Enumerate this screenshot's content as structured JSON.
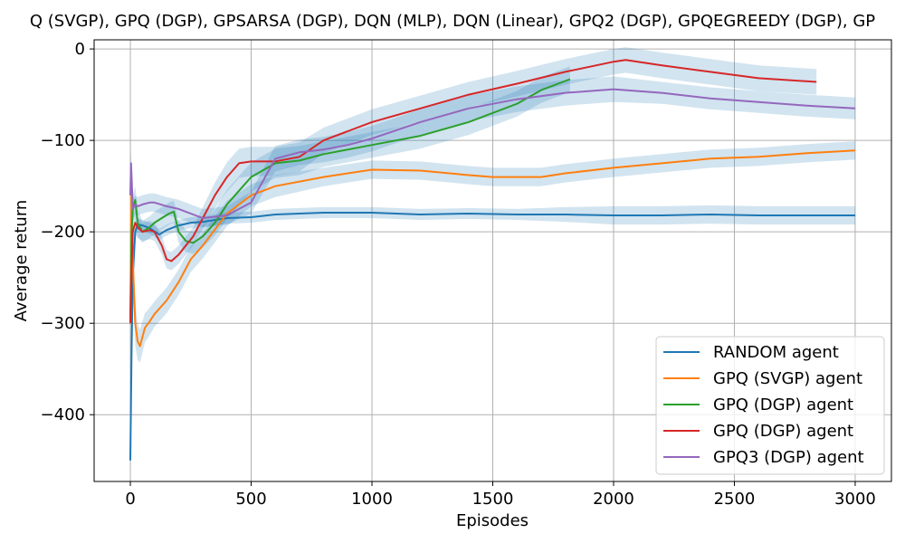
{
  "chart_data": {
    "type": "line",
    "title": "Q (SVGP), GPQ (DGP), GPSARSA (DGP), DQN (MLP), DQN (Linear), GPQ2 (DGP), GPQEGREEDY (DGP), GP",
    "xlabel": "Episodes",
    "ylabel": "Average return",
    "xlim": [
      -150,
      3150
    ],
    "ylim": [
      -473,
      10
    ],
    "xticks": [
      0,
      500,
      1000,
      1500,
      2000,
      2500,
      3000
    ],
    "xtick_labels": [
      "0",
      "500",
      "1000",
      "1500",
      "2000",
      "2500",
      "3000"
    ],
    "yticks": [
      -400,
      -300,
      -200,
      -100,
      0
    ],
    "ytick_labels": [
      "−400",
      "−300",
      "−200",
      "−100",
      "0"
    ],
    "grid": true,
    "legend_position": "bottom-right",
    "band_color": "#1f77b4",
    "series": [
      {
        "name": "RANDOM agent",
        "color": "#1f77b4",
        "x": [
          0,
          5,
          10,
          20,
          30,
          50,
          80,
          120,
          150,
          200,
          250,
          300,
          400,
          500,
          600,
          800,
          1000,
          1200,
          1400,
          1600,
          1800,
          2000,
          2200,
          2400,
          2600,
          2800,
          3000
        ],
        "y": [
          -450,
          -330,
          -250,
          -200,
          -192,
          -193,
          -196,
          -203,
          -198,
          -193,
          -190,
          -189,
          -185,
          -184,
          -181,
          -179,
          -179,
          -181,
          -180,
          -181,
          -181,
          -182,
          -182,
          -181,
          -182,
          -182,
          -182
        ],
        "band": [
          6,
          25,
          15,
          8,
          6,
          6,
          6,
          6,
          6,
          6,
          6,
          6,
          6,
          6,
          6,
          6,
          6,
          6,
          6,
          6,
          8,
          10,
          10,
          10,
          10,
          10,
          10
        ]
      },
      {
        "name": "GPQ (SVGP) agent",
        "color": "#ff7f0e",
        "x": [
          0,
          5,
          10,
          20,
          30,
          40,
          60,
          80,
          100,
          150,
          200,
          250,
          300,
          400,
          500,
          600,
          800,
          1000,
          1200,
          1400,
          1500,
          1700,
          1800,
          2000,
          2200,
          2400,
          2600,
          2800,
          3000
        ],
        "y": [
          -290,
          -150,
          -230,
          -300,
          -320,
          -325,
          -305,
          -298,
          -290,
          -275,
          -255,
          -230,
          -215,
          -180,
          -160,
          -150,
          -140,
          -132,
          -133,
          -138,
          -140,
          -140,
          -136,
          -130,
          -125,
          -120,
          -118,
          -114,
          -111
        ],
        "band": [
          30,
          25,
          25,
          25,
          20,
          18,
          16,
          15,
          14,
          14,
          14,
          14,
          14,
          14,
          12,
          12,
          10,
          10,
          10,
          10,
          10,
          10,
          10,
          10,
          10,
          10,
          10,
          10,
          10
        ]
      },
      {
        "name": "GPQ (DGP) agent",
        "color": "#2ca02c",
        "x": [
          0,
          5,
          10,
          20,
          30,
          50,
          80,
          100,
          130,
          160,
          180,
          200,
          230,
          260,
          300,
          350,
          400,
          450,
          500,
          600,
          700,
          800,
          1000,
          1200,
          1400,
          1600,
          1700,
          1800,
          1820
        ],
        "y": [
          -300,
          -200,
          -175,
          -165,
          -190,
          -200,
          -195,
          -190,
          -185,
          -180,
          -178,
          -200,
          -210,
          -212,
          -205,
          -190,
          -170,
          -155,
          -140,
          -125,
          -122,
          -115,
          -105,
          -95,
          -80,
          -60,
          -45,
          -35,
          -33
        ],
        "band": [
          20,
          20,
          15,
          15,
          15,
          12,
          12,
          12,
          12,
          12,
          12,
          12,
          12,
          12,
          12,
          14,
          16,
          16,
          16,
          16,
          16,
          14,
          14,
          14,
          14,
          14,
          14,
          14,
          14
        ]
      },
      {
        "name": "GPQ (DGP) agent",
        "color": "#d62728",
        "x": [
          0,
          5,
          10,
          20,
          30,
          50,
          80,
          100,
          130,
          150,
          170,
          200,
          230,
          260,
          300,
          350,
          400,
          450,
          500,
          600,
          700,
          800,
          900,
          1000,
          1200,
          1400,
          1600,
          1800,
          2000,
          2050,
          2200,
          2400,
          2600,
          2840
        ],
        "y": [
          -300,
          -240,
          -200,
          -190,
          -195,
          -200,
          -198,
          -200,
          -215,
          -230,
          -232,
          -225,
          -215,
          -205,
          -185,
          -160,
          -140,
          -125,
          -123,
          -123,
          -118,
          -100,
          -90,
          -80,
          -65,
          -50,
          -38,
          -25,
          -14,
          -12,
          -18,
          -25,
          -32,
          -36
        ],
        "band": [
          20,
          20,
          15,
          12,
          12,
          10,
          10,
          10,
          10,
          10,
          10,
          10,
          10,
          10,
          12,
          14,
          16,
          16,
          16,
          16,
          16,
          14,
          14,
          14,
          14,
          14,
          14,
          14,
          14,
          14,
          14,
          14,
          14,
          14
        ]
      },
      {
        "name": "GPQ3 (DGP) agent",
        "color": "#9467bd",
        "x": [
          0,
          3,
          5,
          8,
          10,
          20,
          30,
          50,
          80,
          100,
          150,
          200,
          250,
          300,
          400,
          500,
          600,
          700,
          800,
          900,
          1000,
          1200,
          1400,
          1600,
          1800,
          2000,
          2200,
          2400,
          2600,
          2800,
          3000
        ],
        "y": [
          -160,
          -125,
          -140,
          -160,
          -175,
          -170,
          -172,
          -170,
          -168,
          -168,
          -172,
          -175,
          -180,
          -185,
          -182,
          -168,
          -120,
          -113,
          -110,
          -105,
          -98,
          -80,
          -65,
          -55,
          -48,
          -44,
          -48,
          -54,
          -58,
          -62,
          -65
        ],
        "band": [
          15,
          15,
          15,
          12,
          12,
          10,
          10,
          10,
          10,
          10,
          10,
          10,
          10,
          10,
          10,
          12,
          14,
          14,
          14,
          14,
          14,
          14,
          14,
          14,
          14,
          14,
          12,
          12,
          12,
          12,
          12
        ]
      }
    ]
  }
}
